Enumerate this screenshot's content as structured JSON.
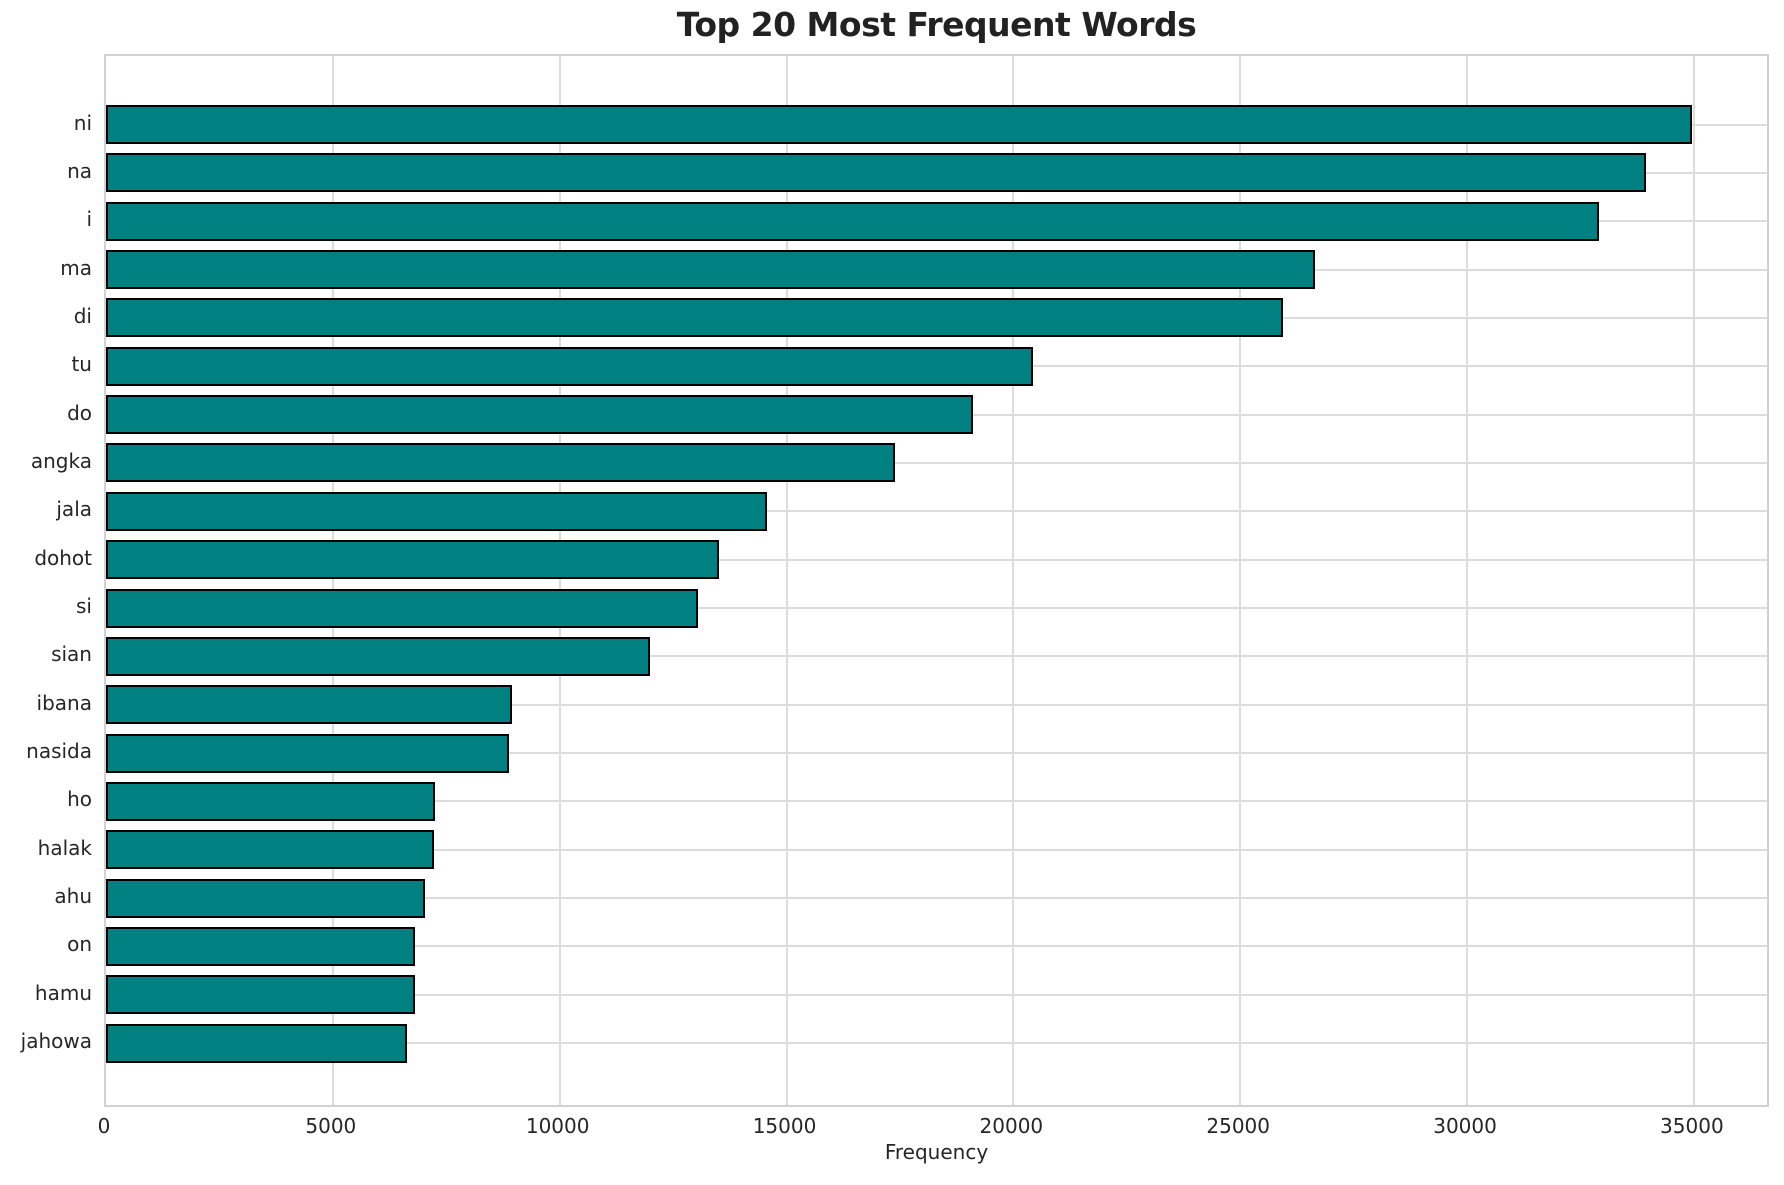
{
  "chart_data": {
    "type": "bar",
    "orientation": "horizontal",
    "title": "Top 20 Most Frequent Words",
    "xlabel": "Frequency",
    "ylabel": "",
    "categories": [
      "ni",
      "na",
      "i",
      "ma",
      "di",
      "tu",
      "do",
      "angka",
      "jala",
      "dohot",
      "si",
      "sian",
      "ibana",
      "nasida",
      "ho",
      "halak",
      "ahu",
      "on",
      "hamu",
      "jahowa"
    ],
    "values": [
      34950,
      33950,
      32910,
      26640,
      25950,
      20440,
      19100,
      17400,
      14580,
      13510,
      13050,
      11990,
      8940,
      8880,
      7250,
      7225,
      7030,
      6810,
      6810,
      6630
    ],
    "xlim": [
      0,
      36700
    ],
    "xticks": [
      0,
      5000,
      10000,
      15000,
      20000,
      25000,
      30000,
      35000
    ],
    "xtick_labels": [
      "0",
      "5000",
      "10000",
      "15000",
      "20000",
      "25000",
      "30000",
      "35000"
    ],
    "legend": "none",
    "grid": "both",
    "colors": {
      "bar_fill": "#008080",
      "bar_edge": "#000000",
      "gridline": "#dcdcdc",
      "spine": "#d2d2d2",
      "text": "#262626",
      "title_text": "#222222",
      "background": "#ffffff"
    }
  }
}
